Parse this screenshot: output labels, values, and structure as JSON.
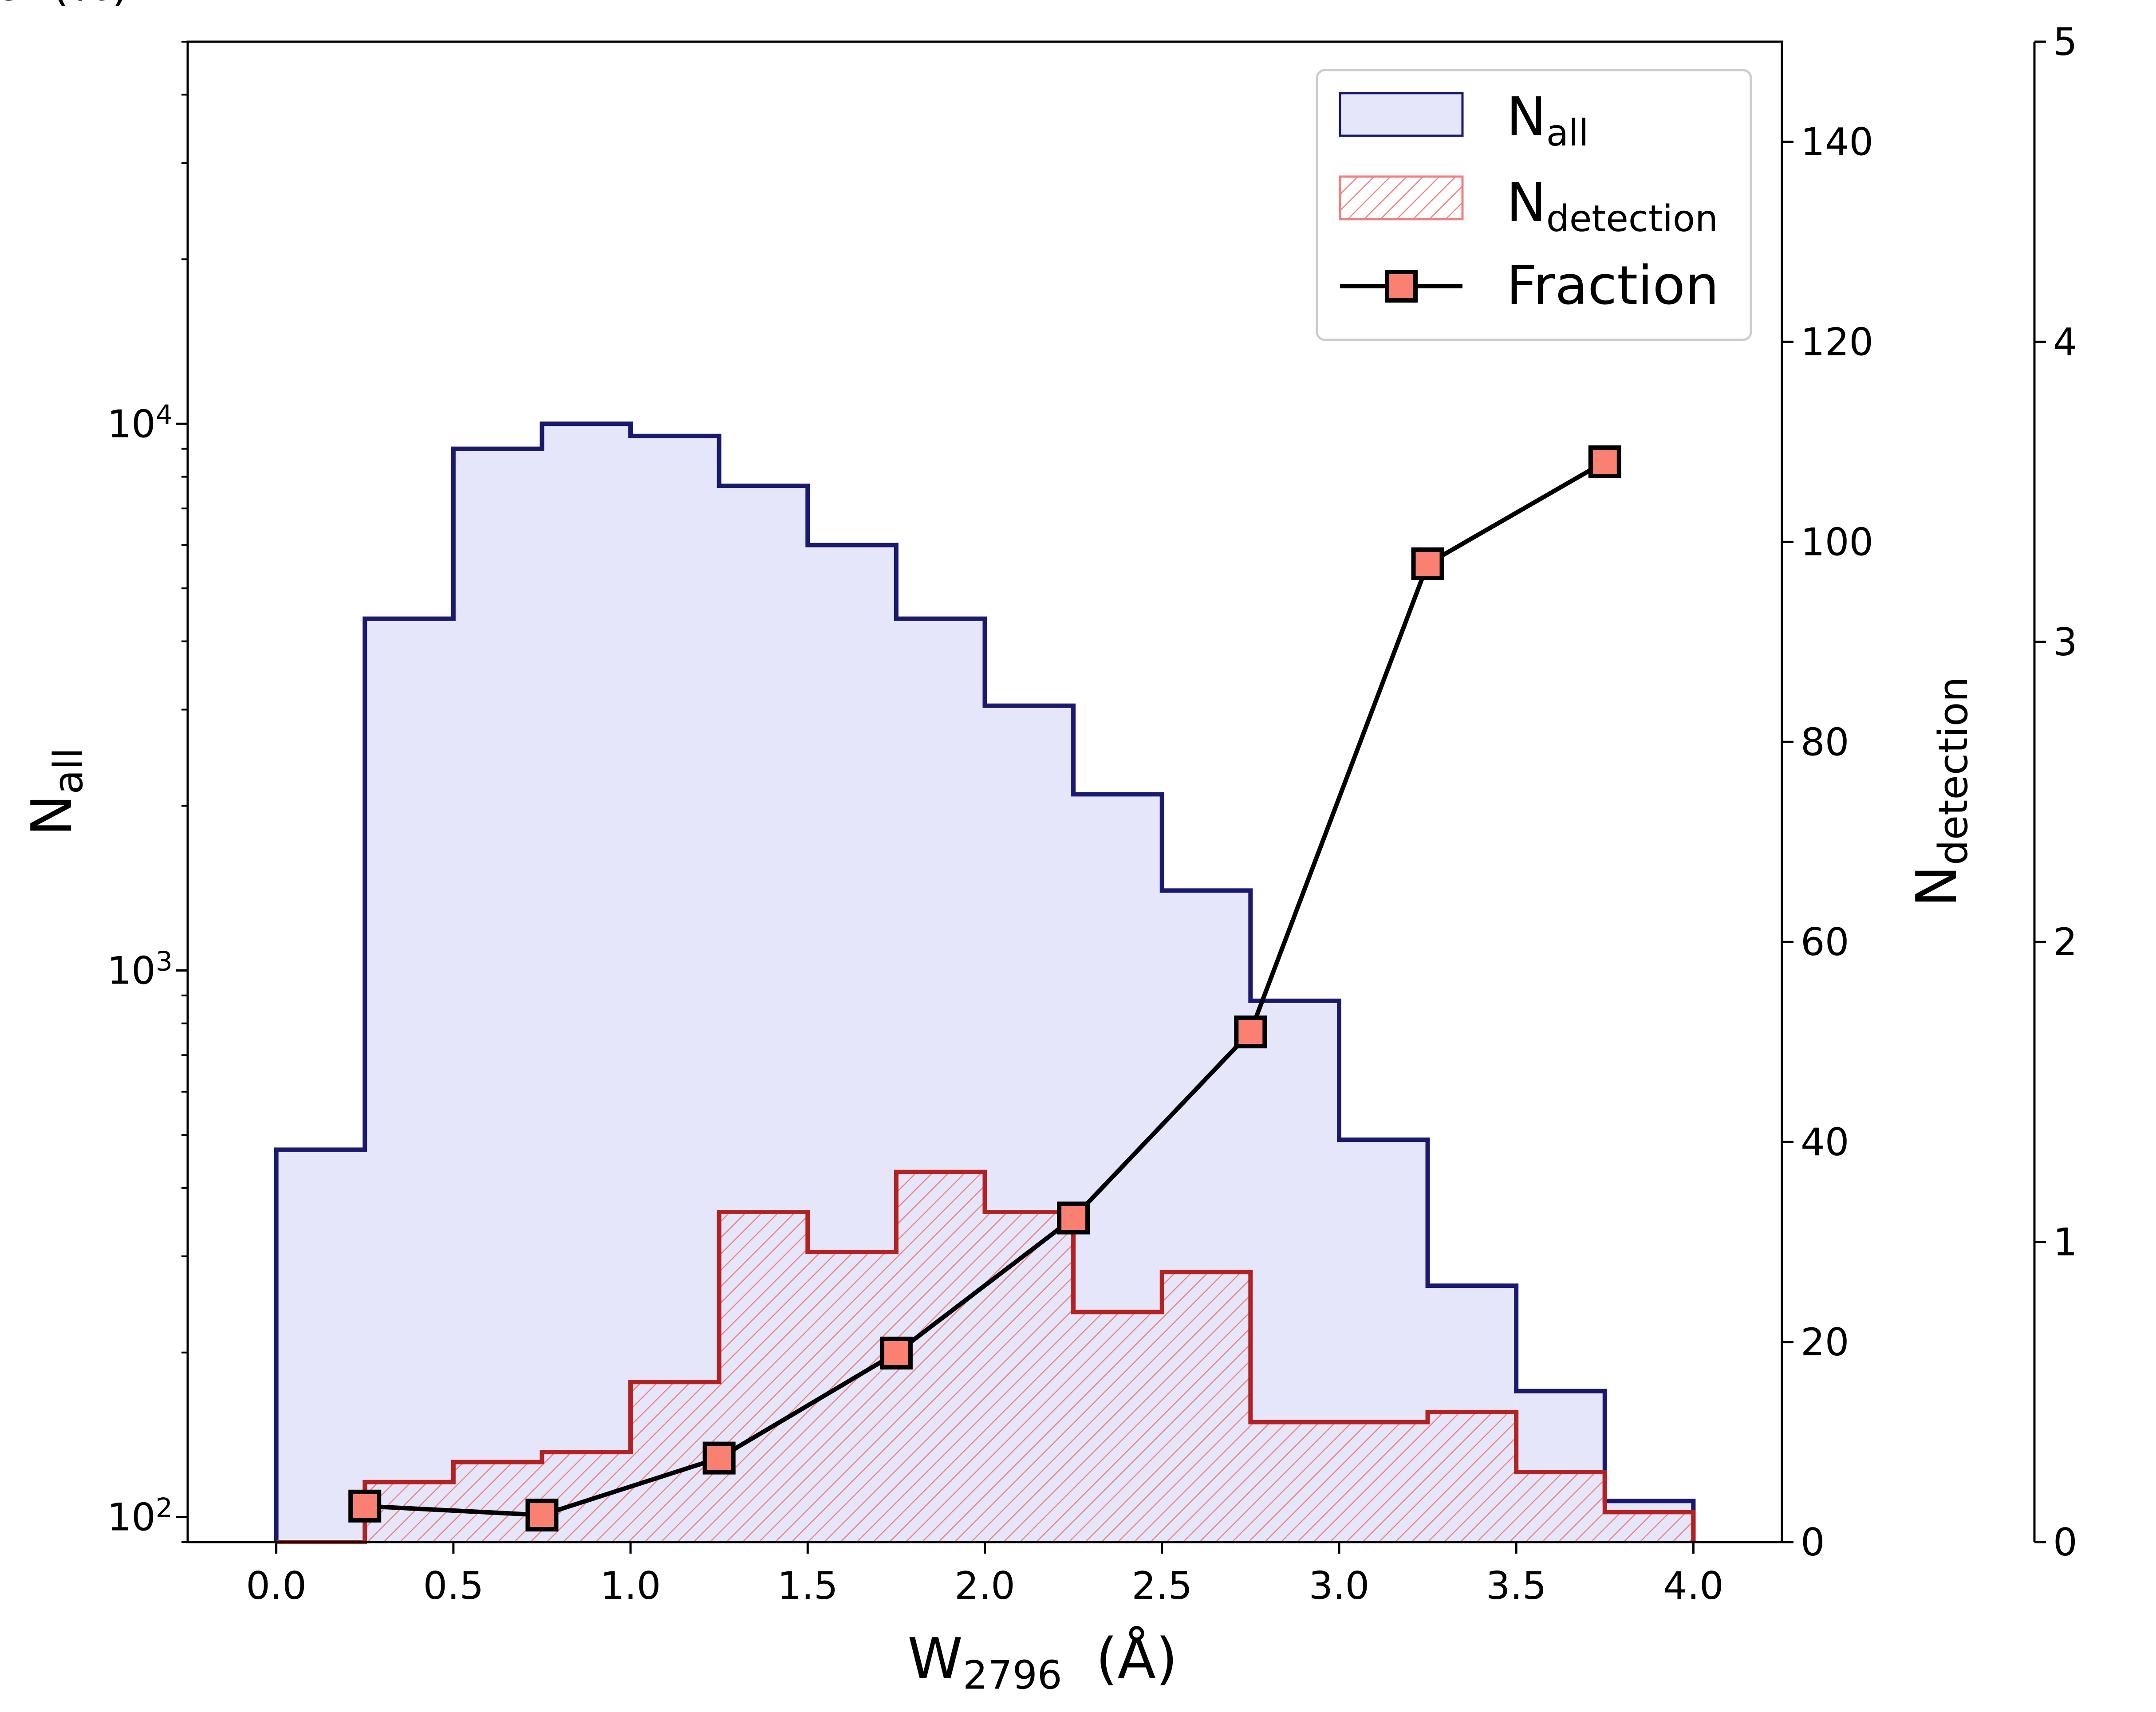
{
  "chart_data": {
    "type": "histogram",
    "xlabel_main": "W",
    "xlabel_sub": "2796",
    "xlabel_unit": "(Å)",
    "x_ticks": [
      "0.0",
      "0.5",
      "1.0",
      "1.5",
      "2.0",
      "2.5",
      "3.0",
      "3.5",
      "4.0"
    ],
    "xlim": [
      -0.25,
      4.25
    ],
    "bin_edges": [
      0.0,
      0.25,
      0.5,
      0.75,
      1.0,
      1.25,
      1.5,
      1.75,
      2.0,
      2.25,
      2.5,
      2.75,
      3.0,
      3.25,
      3.5,
      3.75,
      4.0
    ],
    "left_axis": {
      "label_main": "N",
      "label_sub": "all",
      "scale": "log",
      "ylim": [
        90,
        50000
      ],
      "ticks": [
        {
          "value": 100,
          "base": "10",
          "exp": "2"
        },
        {
          "value": 1000,
          "base": "10",
          "exp": "3"
        },
        {
          "value": 10000,
          "base": "10",
          "exp": "4"
        }
      ]
    },
    "right_axis": {
      "label_main": "N",
      "label_sub": "detection",
      "ylim": [
        0,
        150
      ],
      "ticks": [
        "0",
        "20",
        "40",
        "60",
        "80",
        "100",
        "120",
        "140"
      ]
    },
    "fraction_axis": {
      "label": "Fraction(%)",
      "ylim": [
        0,
        5
      ],
      "ticks": [
        "0",
        "1",
        "2",
        "3",
        "4",
        "5"
      ]
    },
    "series": [
      {
        "name": "N_all",
        "legend_main": "N",
        "legend_sub": "all",
        "axis": "left",
        "style": "step-filled",
        "values": [
          470,
          4400,
          9000,
          10000,
          9500,
          7700,
          6000,
          4400,
          3050,
          2100,
          1400,
          880,
          490,
          265,
          170,
          107
        ],
        "fill": "#e6e6fa",
        "edge": "#191970"
      },
      {
        "name": "N_detection",
        "legend_main": "N",
        "legend_sub": "detection",
        "axis": "right",
        "style": "step-hatched",
        "values": [
          0,
          6,
          8,
          9,
          16,
          33,
          29,
          37,
          33,
          23,
          27,
          12,
          12,
          13,
          7,
          3
        ],
        "hatch": "#f08080",
        "edge": "#b22222"
      },
      {
        "name": "Fraction",
        "legend_main": "Fraction",
        "axis": "fraction",
        "style": "line-marker",
        "x": [
          0.25,
          0.75,
          1.25,
          1.75,
          2.25,
          2.75,
          3.25,
          3.75
        ],
        "values": [
          0.12,
          0.09,
          0.28,
          0.63,
          1.08,
          1.7,
          3.26,
          3.6
        ],
        "line": "#000000",
        "marker_fill": "#fa8072"
      }
    ]
  }
}
